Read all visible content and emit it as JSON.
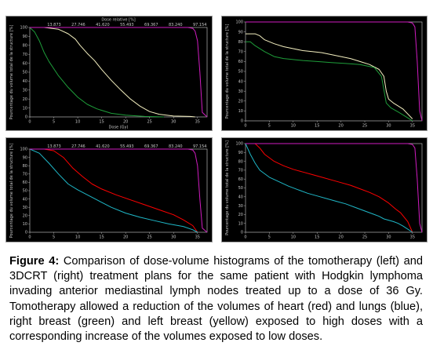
{
  "caption": {
    "figure_label": "Figure 4:",
    "text": " Comparison of dose-volume histograms of the tomotherapy (left) and 3DCRT (right) treatment plans for the same patient with Hodgkin lymphoma invading anterior mediastinal lymph nodes treated up to a dose of 36 Gy. Tomotherapy allowed a reduction of the volumes of heart (red) and lungs (blue), right breast (green) and left breast (yellow) exposed to high doses with a corresponding increase of the volumes exposed to low doses."
  },
  "colors": {
    "background": "#000000",
    "axis": "#b4b4b4",
    "ptv": "#d01cc0",
    "red": "#ff0000",
    "blue": "#1fb8c8",
    "green": "#1e9e3a",
    "yellow": "#f4f0c0",
    "white": "#ffffff"
  },
  "chart_data": [
    {
      "type": "line",
      "panel": "top-left",
      "xlabel": "Dose (Gy)",
      "ylabel": "Pourcentage du volume total de la structure [%]",
      "top_axis_label": "Dose relative [%]",
      "top_ticks": [
        "13.873",
        "27.746",
        "41.620",
        "55.493",
        "69.367",
        "83.240",
        "97.154"
      ],
      "xlim": [
        0,
        37
      ],
      "ylim": [
        0,
        100
      ],
      "xticks": [
        0,
        5,
        10,
        15,
        20,
        25,
        30,
        35
      ],
      "yticks": [
        0,
        10,
        20,
        30,
        40,
        50,
        60,
        70,
        80,
        90,
        100
      ],
      "series": [
        {
          "color": "yellow",
          "x": [
            0,
            3,
            6,
            8,
            9.5,
            10.5,
            12,
            13.5,
            15,
            17,
            19,
            21,
            23,
            25,
            27,
            30,
            33.5,
            34.5
          ],
          "y": [
            100,
            100,
            98,
            93,
            87,
            80,
            71,
            63,
            53,
            41,
            30,
            20,
            12,
            6,
            3,
            1,
            0.5,
            0
          ]
        },
        {
          "color": "green",
          "x": [
            0,
            1,
            2,
            3,
            4,
            6,
            8,
            10,
            12,
            14,
            17,
            20,
            24,
            28
          ],
          "y": [
            100,
            95,
            85,
            72,
            62,
            46,
            33,
            22,
            14,
            9,
            4,
            2,
            0.5,
            0
          ]
        },
        {
          "color": "ptv",
          "x": [
            0,
            33,
            34,
            34.5,
            35,
            35.5,
            36,
            37
          ],
          "y": [
            100,
            100,
            99,
            96,
            85,
            50,
            5,
            0
          ]
        }
      ]
    },
    {
      "type": "line",
      "panel": "top-right",
      "ylabel": "Pourcentage du volume total de la structure [%]",
      "xlim": [
        0,
        37
      ],
      "ylim": [
        0,
        100
      ],
      "xticks": [
        0,
        5,
        10,
        15,
        20,
        25,
        30,
        35
      ],
      "yticks": [
        0,
        10,
        20,
        30,
        40,
        50,
        60,
        70,
        80,
        90,
        100
      ],
      "series": [
        {
          "color": "yellow",
          "x": [
            0,
            1,
            2,
            3,
            4,
            6,
            8,
            10,
            12,
            14,
            16,
            18,
            20,
            22,
            24,
            26,
            28,
            29,
            29.5,
            30,
            31,
            32,
            33,
            34,
            35
          ],
          "y": [
            88,
            88,
            88,
            86,
            82,
            78,
            75,
            73,
            71,
            70,
            69,
            67,
            65,
            63,
            60,
            57,
            52,
            45,
            30,
            22,
            18,
            15,
            12,
            7,
            2
          ]
        },
        {
          "color": "green",
          "x": [
            0,
            1,
            2,
            4,
            6,
            8,
            10,
            12,
            15,
            18,
            21,
            24,
            27,
            28.5,
            29.5,
            30.5,
            32,
            34,
            35
          ],
          "y": [
            80,
            80,
            76,
            70,
            65,
            63,
            62,
            61,
            60,
            59,
            58,
            57,
            54,
            45,
            18,
            13,
            9,
            3,
            0
          ]
        },
        {
          "color": "ptv",
          "x": [
            0,
            34,
            35,
            35.5,
            36,
            36.5,
            37
          ],
          "y": [
            100,
            100,
            99,
            95,
            60,
            10,
            0
          ]
        }
      ]
    },
    {
      "type": "line",
      "panel": "bottom-left",
      "ylabel": "Pourcentage du volume total de la structure [%]",
      "top_ticks": [
        "13.873",
        "27.746",
        "41.620",
        "55.493",
        "69.367",
        "83.240",
        "97.154"
      ],
      "xlim": [
        0,
        37
      ],
      "ylim": [
        0,
        100
      ],
      "xticks": [
        0,
        5,
        10,
        15,
        20,
        25,
        30,
        35
      ],
      "yticks": [
        0,
        10,
        20,
        30,
        40,
        50,
        60,
        70,
        80,
        90,
        100
      ],
      "series": [
        {
          "color": "red",
          "x": [
            0,
            3,
            5,
            7,
            9,
            11,
            13,
            15,
            18,
            21,
            24,
            27,
            30,
            32,
            34,
            35
          ],
          "y": [
            100,
            100,
            98,
            90,
            77,
            67,
            58,
            52,
            45,
            39,
            33,
            27,
            21,
            15,
            8,
            0
          ]
        },
        {
          "color": "blue",
          "x": [
            0,
            2,
            4,
            6,
            8,
            10,
            12,
            14,
            17,
            20,
            23,
            26,
            29,
            32,
            34,
            35
          ],
          "y": [
            100,
            95,
            83,
            70,
            58,
            51,
            45,
            39,
            30,
            23,
            18,
            14,
            10,
            7,
            3,
            0
          ]
        },
        {
          "color": "ptv",
          "x": [
            0,
            33,
            34,
            34.5,
            35,
            35.5,
            36,
            37
          ],
          "y": [
            100,
            100,
            99,
            95,
            80,
            40,
            5,
            0
          ]
        }
      ]
    },
    {
      "type": "line",
      "panel": "bottom-right",
      "ylabel": "Pourcentage du volume total de la structure [%]",
      "xlim": [
        0,
        37
      ],
      "ylim": [
        0,
        100
      ],
      "xticks": [
        0,
        5,
        10,
        15,
        20,
        25,
        30,
        35
      ],
      "yticks": [
        0,
        10,
        20,
        30,
        40,
        50,
        60,
        70,
        80,
        90,
        100
      ],
      "series": [
        {
          "color": "red",
          "x": [
            0,
            1,
            2,
            3,
            4,
            6,
            8,
            10,
            12,
            14,
            16,
            18,
            20,
            22,
            24,
            26,
            28,
            30,
            31.5,
            32.5,
            34,
            35
          ],
          "y": [
            100,
            100,
            100,
            95,
            88,
            80,
            75,
            71,
            68,
            65,
            62,
            59,
            56,
            53,
            49,
            45,
            40,
            33,
            26,
            22,
            12,
            0
          ]
        },
        {
          "color": "blue",
          "x": [
            0,
            1,
            2,
            3,
            5,
            7,
            9,
            11,
            13,
            15,
            17,
            19,
            21,
            23,
            25,
            27,
            28,
            29,
            31,
            32,
            33,
            35
          ],
          "y": [
            100,
            88,
            78,
            70,
            62,
            57,
            52,
            48,
            44,
            41,
            38,
            35,
            32,
            28,
            24,
            20,
            18,
            15,
            12,
            10,
            7,
            0
          ]
        },
        {
          "color": "ptv",
          "x": [
            0,
            34,
            35,
            35.5,
            36,
            36.5,
            37
          ],
          "y": [
            100,
            100,
            99,
            95,
            60,
            10,
            0
          ]
        }
      ]
    }
  ]
}
